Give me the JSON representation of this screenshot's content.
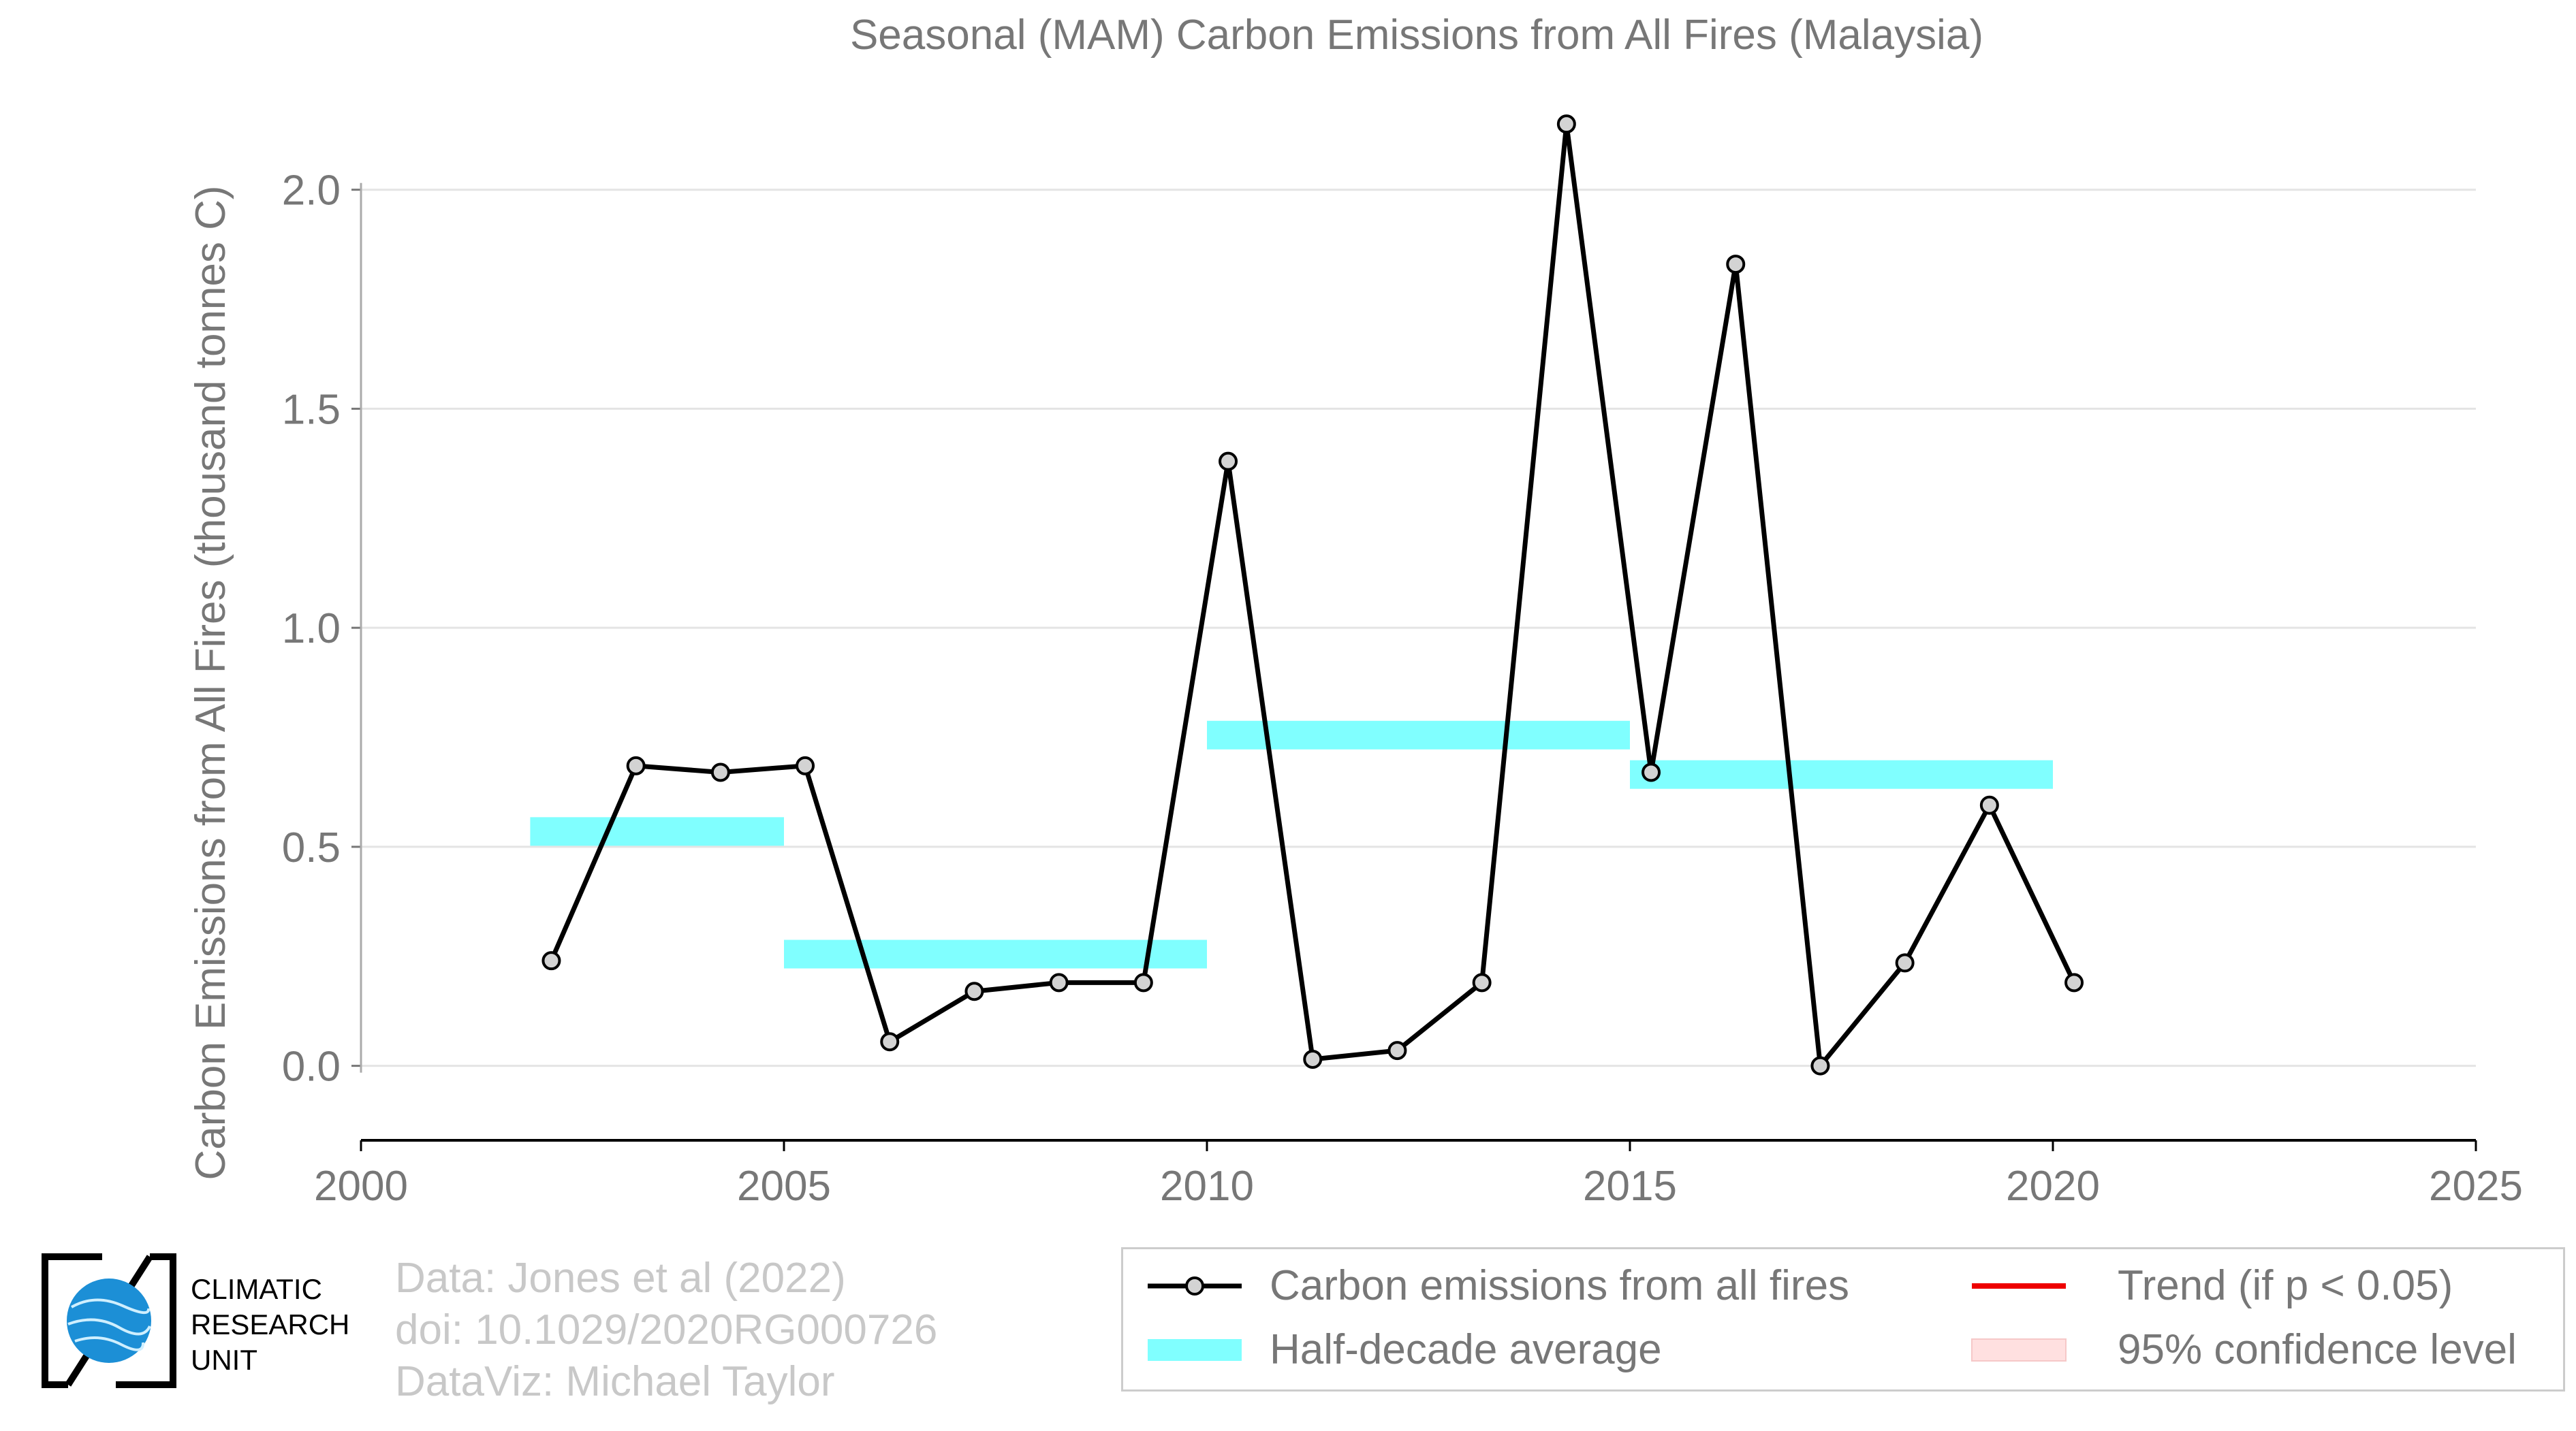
{
  "chart_data": {
    "type": "line",
    "title": "Seasonal (MAM) Carbon Emissions from All Fires (Malaysia)",
    "xlabel": "",
    "ylabel": "Carbon Emissions from All Fires (thousand tonnes C)",
    "xlim": [
      2000,
      2025
    ],
    "ylim": [
      -0.17,
      2.2
    ],
    "xticks": [
      "2000",
      "2005",
      "2010",
      "2015",
      "2020",
      "2025"
    ],
    "yticks": [
      "0.0",
      "0.5",
      "1.0",
      "1.5",
      "2.0"
    ],
    "grid": "horizontal",
    "legend_position": "bottom-right",
    "series": [
      {
        "name": "Carbon emissions from all fires",
        "color": "#000000",
        "marker_color": "#d3d3d3",
        "x": [
          2002.25,
          2003.25,
          2004.25,
          2005.25,
          2006.25,
          2007.25,
          2008.25,
          2009.25,
          2010.25,
          2011.25,
          2012.25,
          2013.25,
          2014.25,
          2015.25,
          2016.25,
          2017.25,
          2018.25,
          2019.25,
          2020.25
        ],
        "y": [
          0.24,
          0.685,
          0.67,
          0.685,
          0.055,
          0.17,
          0.19,
          0.19,
          1.38,
          0.015,
          0.035,
          0.19,
          2.15,
          0.67,
          1.83,
          0.0,
          0.235,
          0.595,
          0.19
        ]
      },
      {
        "name": "Half-decade average",
        "color": "#80ffff",
        "segments": [
          {
            "x0": 2002,
            "x1": 2005,
            "y": 0.535
          },
          {
            "x0": 2005,
            "x1": 2010,
            "y": 0.255
          },
          {
            "x0": 2010,
            "x1": 2015,
            "y": 0.755
          },
          {
            "x0": 2015,
            "x1": 2020,
            "y": 0.665
          }
        ]
      }
    ]
  },
  "legend": {
    "items": [
      {
        "label": "Carbon emissions from all fires"
      },
      {
        "label": "Half-decade average"
      },
      {
        "label": "Trend (if p < 0.05)"
      },
      {
        "label": "95% confidence level"
      }
    ]
  },
  "credits": {
    "line1": "Data: Jones et al (2022)",
    "line2": "doi: 10.1029/2020RG000726",
    "line3": "DataViz: Michael Taylor"
  },
  "logo": {
    "line1": "CLIMATIC",
    "line2": "RESEARCH",
    "line3": "UNIT"
  },
  "colors": {
    "trend": "#ee0000",
    "confidence": "#ffe0e0",
    "axis": "#000000",
    "grid": "#e4e4e4",
    "text": "#777777"
  }
}
